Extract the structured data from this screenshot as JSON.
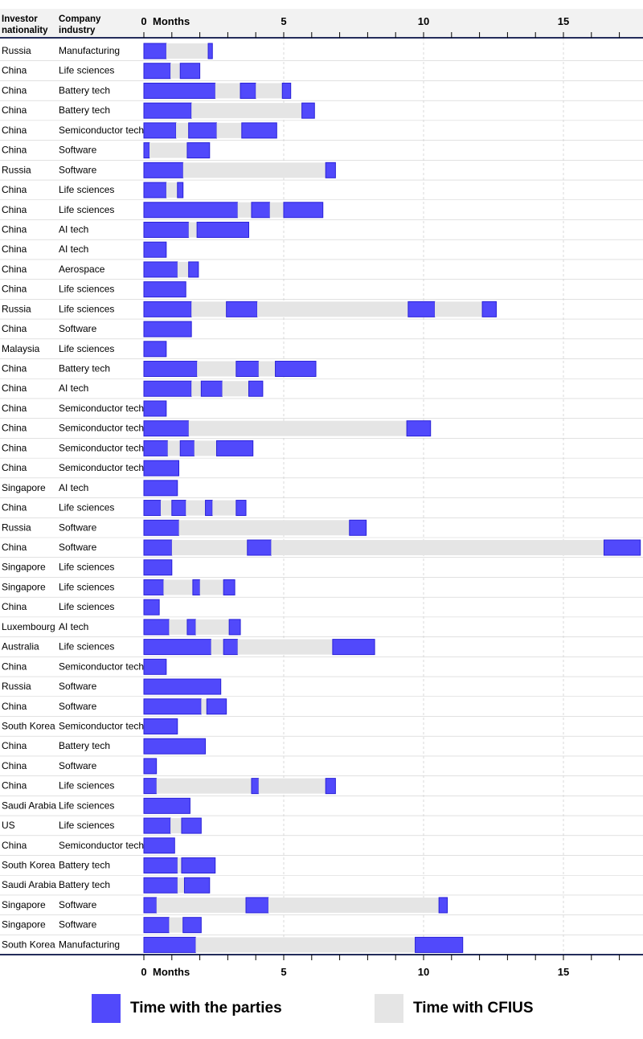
{
  "header": {
    "col1": [
      "Investor",
      "nationality"
    ],
    "col2": [
      "Company",
      "industry"
    ],
    "axis_unit": "Months"
  },
  "colors": {
    "parties": "#5149fb",
    "parties_border": "#2a22d8",
    "cfius": "#e5e5e5",
    "header_bg": "#f2f2f2",
    "axis_line": "#232c5a",
    "grid": "#d9d9d9",
    "row_sep": "#cfcfcf"
  },
  "legend": {
    "parties": "Time with the parties",
    "cfius": "Time with CFIUS"
  },
  "chart_data": {
    "type": "bar",
    "orientation": "horizontal-stacked",
    "xlabel": "Months",
    "xlim": [
      0,
      17.8
    ],
    "xticks": [
      0,
      5,
      10,
      15
    ],
    "xtick_labels": [
      "0",
      "5",
      "10",
      "15"
    ],
    "minor_tick_step": 1,
    "grid": true,
    "legend_position": "bottom",
    "series": [
      {
        "name": "Time with the parties",
        "key": "P"
      },
      {
        "name": "Time with CFIUS",
        "key": "C"
      }
    ],
    "rows": [
      {
        "nationality": "Russia",
        "industry": "Manufacturing",
        "segments": [
          [
            "P",
            0.8
          ],
          [
            "C",
            1.5
          ],
          [
            "P",
            0.15
          ]
        ]
      },
      {
        "nationality": "China",
        "industry": "Life sciences",
        "segments": [
          [
            "P",
            0.95
          ],
          [
            "C",
            0.35
          ],
          [
            "P",
            0.7
          ]
        ]
      },
      {
        "nationality": "China",
        "industry": "Battery tech",
        "segments": [
          [
            "P",
            2.55
          ],
          [
            "C",
            0.9
          ],
          [
            "P",
            0.55
          ],
          [
            "C",
            0.95
          ],
          [
            "P",
            0.3
          ]
        ]
      },
      {
        "nationality": "China",
        "industry": "Battery tech",
        "segments": [
          [
            "P",
            1.7
          ],
          [
            "C",
            3.95
          ],
          [
            "P",
            0.45
          ]
        ]
      },
      {
        "nationality": "China",
        "industry": "Semiconductor tech",
        "segments": [
          [
            "P",
            1.15
          ],
          [
            "C",
            0.45
          ],
          [
            "P",
            1.0
          ],
          [
            "C",
            0.9
          ],
          [
            "P",
            1.25
          ]
        ]
      },
      {
        "nationality": "China",
        "industry": "Software",
        "segments": [
          [
            "P",
            0.2
          ],
          [
            "C",
            1.35
          ],
          [
            "P",
            0.8
          ]
        ]
      },
      {
        "nationality": "Russia",
        "industry": "Software",
        "segments": [
          [
            "P",
            1.4
          ],
          [
            "C",
            5.1
          ],
          [
            "P",
            0.35
          ]
        ]
      },
      {
        "nationality": "China",
        "industry": "Life sciences",
        "segments": [
          [
            "P",
            0.8
          ],
          [
            "C",
            0.4
          ],
          [
            "P",
            0.2
          ]
        ]
      },
      {
        "nationality": "China",
        "industry": "Life sciences",
        "segments": [
          [
            "P",
            3.35
          ],
          [
            "C",
            0.5
          ],
          [
            "P",
            0.65
          ],
          [
            "C",
            0.5
          ],
          [
            "P",
            1.4
          ]
        ]
      },
      {
        "nationality": "China",
        "industry": "AI tech",
        "segments": [
          [
            "P",
            1.6
          ],
          [
            "C",
            0.3
          ],
          [
            "P",
            1.85
          ]
        ]
      },
      {
        "nationality": "China",
        "industry": "AI tech",
        "segments": [
          [
            "P",
            0.8
          ]
        ]
      },
      {
        "nationality": "China",
        "industry": "Aerospace",
        "segments": [
          [
            "P",
            1.2
          ],
          [
            "C",
            0.4
          ],
          [
            "P",
            0.35
          ]
        ]
      },
      {
        "nationality": "China",
        "industry": "Life sciences",
        "segments": [
          [
            "P",
            1.5
          ]
        ]
      },
      {
        "nationality": "Russia",
        "industry": "Life sciences",
        "segments": [
          [
            "P",
            1.7
          ],
          [
            "C",
            1.25
          ],
          [
            "P",
            1.1
          ],
          [
            "C",
            5.4
          ],
          [
            "P",
            0.95
          ],
          [
            "C",
            1.7
          ],
          [
            "P",
            0.5
          ]
        ]
      },
      {
        "nationality": "China",
        "industry": "Software",
        "segments": [
          [
            "P",
            1.7
          ]
        ]
      },
      {
        "nationality": "Malaysia",
        "industry": "Life sciences",
        "segments": [
          [
            "P",
            0.8
          ]
        ]
      },
      {
        "nationality": "China",
        "industry": "Battery tech",
        "segments": [
          [
            "P",
            1.9
          ],
          [
            "C",
            1.4
          ],
          [
            "P",
            0.8
          ],
          [
            "C",
            0.6
          ],
          [
            "P",
            1.45
          ]
        ]
      },
      {
        "nationality": "China",
        "industry": "AI tech",
        "segments": [
          [
            "P",
            1.7
          ],
          [
            "C",
            0.35
          ],
          [
            "P",
            0.75
          ],
          [
            "C",
            0.95
          ],
          [
            "P",
            0.5
          ]
        ]
      },
      {
        "nationality": "China",
        "industry": "Semiconductor tech",
        "segments": [
          [
            "P",
            0.8
          ]
        ]
      },
      {
        "nationality": "China",
        "industry": "Semiconductor tech",
        "segments": [
          [
            "P",
            1.6
          ],
          [
            "C",
            7.8
          ],
          [
            "P",
            0.85
          ]
        ]
      },
      {
        "nationality": "China",
        "industry": "Semiconductor tech",
        "segments": [
          [
            "P",
            0.85
          ],
          [
            "C",
            0.45
          ],
          [
            "P",
            0.5
          ],
          [
            "C",
            0.8
          ],
          [
            "P",
            1.3
          ]
        ]
      },
      {
        "nationality": "China",
        "industry": "Semiconductor tech",
        "segments": [
          [
            "P",
            1.25
          ]
        ]
      },
      {
        "nationality": "Singapore",
        "industry": "AI tech",
        "segments": [
          [
            "P",
            1.2
          ]
        ]
      },
      {
        "nationality": "China",
        "industry": "Life sciences",
        "segments": [
          [
            "P",
            0.6
          ],
          [
            "C",
            0.4
          ],
          [
            "P",
            0.5
          ],
          [
            "C",
            0.7
          ],
          [
            "P",
            0.25
          ],
          [
            "C",
            0.85
          ],
          [
            "P",
            0.35
          ]
        ]
      },
      {
        "nationality": "Russia",
        "industry": "Software",
        "segments": [
          [
            "P",
            1.25
          ],
          [
            "C",
            6.1
          ],
          [
            "P",
            0.6
          ]
        ]
      },
      {
        "nationality": "China",
        "industry": "Software",
        "segments": [
          [
            "P",
            1.0
          ],
          [
            "C",
            2.7
          ],
          [
            "P",
            0.85
          ],
          [
            "C",
            11.9
          ],
          [
            "P",
            1.3
          ]
        ]
      },
      {
        "nationality": "Singapore",
        "industry": "Life sciences",
        "segments": [
          [
            "P",
            1.0
          ]
        ]
      },
      {
        "nationality": "Singapore",
        "industry": "Life sciences",
        "segments": [
          [
            "P",
            0.7
          ],
          [
            "C",
            1.05
          ],
          [
            "P",
            0.25
          ],
          [
            "C",
            0.85
          ],
          [
            "P",
            0.4
          ]
        ]
      },
      {
        "nationality": "China",
        "industry": "Life sciences",
        "segments": [
          [
            "P",
            0.55
          ]
        ]
      },
      {
        "nationality": "Luxembourg",
        "industry": "AI tech",
        "segments": [
          [
            "P",
            0.9
          ],
          [
            "C",
            0.65
          ],
          [
            "P",
            0.3
          ],
          [
            "C",
            1.2
          ],
          [
            "P",
            0.4
          ]
        ]
      },
      {
        "nationality": "Australia",
        "industry": "Life sciences",
        "segments": [
          [
            "P",
            2.4
          ],
          [
            "C",
            0.45
          ],
          [
            "P",
            0.5
          ],
          [
            "C",
            3.4
          ],
          [
            "P",
            1.5
          ]
        ]
      },
      {
        "nationality": "China",
        "industry": "Semiconductor tech",
        "segments": [
          [
            "P",
            0.8
          ]
        ]
      },
      {
        "nationality": "Russia",
        "industry": "Software",
        "segments": [
          [
            "P",
            2.75
          ]
        ]
      },
      {
        "nationality": "China",
        "industry": "Software",
        "segments": [
          [
            "P",
            2.05
          ],
          [
            "C",
            0.2
          ],
          [
            "P",
            0.7
          ]
        ]
      },
      {
        "nationality": "South Korea",
        "industry": "Semiconductor tech",
        "segments": [
          [
            "P",
            1.2
          ]
        ]
      },
      {
        "nationality": "China",
        "industry": "Battery tech",
        "segments": [
          [
            "P",
            2.2
          ]
        ]
      },
      {
        "nationality": "China",
        "industry": "Software",
        "segments": [
          [
            "P",
            0.45
          ]
        ]
      },
      {
        "nationality": "China",
        "industry": "Life sciences",
        "segments": [
          [
            "P",
            0.45
          ],
          [
            "C",
            3.4
          ],
          [
            "P",
            0.25
          ],
          [
            "C",
            2.4
          ],
          [
            "P",
            0.35
          ]
        ]
      },
      {
        "nationality": "Saudi Arabia",
        "industry": "Life sciences",
        "segments": [
          [
            "P",
            1.65
          ]
        ]
      },
      {
        "nationality": "US",
        "industry": "Life sciences",
        "segments": [
          [
            "P",
            0.95
          ],
          [
            "C",
            0.4
          ],
          [
            "P",
            0.7
          ]
        ]
      },
      {
        "nationality": "China",
        "industry": "Semiconductor tech",
        "segments": [
          [
            "P",
            1.1
          ]
        ]
      },
      {
        "nationality": "South Korea",
        "industry": "Battery tech",
        "segments": [
          [
            "P",
            1.2
          ],
          [
            "C",
            0.15
          ],
          [
            "P",
            1.2
          ]
        ]
      },
      {
        "nationality": "Saudi Arabia",
        "industry": "Battery tech",
        "segments": [
          [
            "P",
            1.2
          ],
          [
            "C",
            0.25
          ],
          [
            "P",
            0.9
          ]
        ]
      },
      {
        "nationality": "Singapore",
        "industry": "Software",
        "segments": [
          [
            "P",
            0.45
          ],
          [
            "C",
            3.2
          ],
          [
            "P",
            0.8
          ],
          [
            "C",
            6.1
          ],
          [
            "P",
            0.3
          ]
        ]
      },
      {
        "nationality": "Singapore",
        "industry": "Software",
        "segments": [
          [
            "P",
            0.9
          ],
          [
            "C",
            0.5
          ],
          [
            "P",
            0.65
          ]
        ]
      },
      {
        "nationality": "South Korea",
        "industry": "Manufacturing",
        "segments": [
          [
            "P",
            1.85
          ],
          [
            "C",
            7.85
          ],
          [
            "P",
            1.7
          ]
        ]
      }
    ]
  }
}
